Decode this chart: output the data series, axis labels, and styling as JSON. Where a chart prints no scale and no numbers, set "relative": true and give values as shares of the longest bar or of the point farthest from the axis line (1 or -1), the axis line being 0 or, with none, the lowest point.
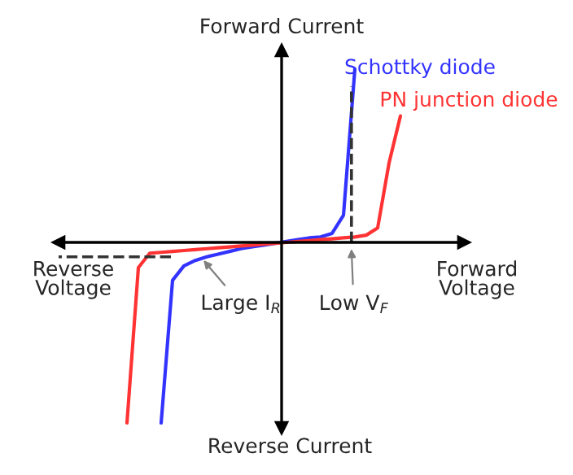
{
  "chart_data": {
    "type": "line",
    "relative": true,
    "xlabel": "Forward Voltage",
    "ylabel": "Forward Current",
    "categories": [
      null,
      null,
      null,
      null,
      null,
      null,
      null,
      null,
      null,
      null,
      null,
      null,
      null,
      null,
      null,
      null,
      null,
      null,
      null,
      null,
      null,
      null,
      null,
      null,
      null,
      null,
      null,
      null,
      null,
      null,
      null,
      null,
      null,
      null,
      null,
      null
    ],
    "series": [
      {
        "name": "Schottky diode",
        "color": "#3333ff",
        "values": [
          null,
          null,
          null,
          null,
          null,
          null,
          null,
          null,
          null,
          -1.0,
          -0.21,
          -0.13,
          -0.1,
          -0.08,
          -0.065,
          -0.05,
          -0.035,
          -0.025,
          -0.015,
          -0.005,
          0.005,
          0.015,
          0.025,
          0.03,
          0.05,
          0.15,
          0.96,
          null,
          null,
          null,
          null,
          null,
          null,
          null,
          null,
          null
        ]
      },
      {
        "name": "PN junction diode",
        "color": "#ff3333",
        "values": [
          null,
          null,
          null,
          null,
          null,
          null,
          -1.0,
          -0.14,
          -0.06,
          -0.055,
          -0.05,
          -0.045,
          -0.04,
          -0.035,
          -0.03,
          -0.025,
          -0.02,
          -0.015,
          -0.01,
          -0.005,
          0.0,
          0.005,
          0.01,
          0.015,
          0.02,
          0.025,
          0.03,
          0.04,
          0.08,
          0.44,
          0.7,
          null,
          null,
          null,
          null,
          null
        ]
      }
    ],
    "ref_lines": [
      {
        "axis": "y",
        "value": -0.08,
        "label": "Large I$_{R}$",
        "color": "#333333",
        "line_style": "dashed"
      }
    ],
    "annotations": [
      "Reverse Voltage",
      "Reverse Current",
      "Low V$_{F}$"
    ],
    "legend": false,
    "marker": "none",
    "line_style": "solid"
  }
}
